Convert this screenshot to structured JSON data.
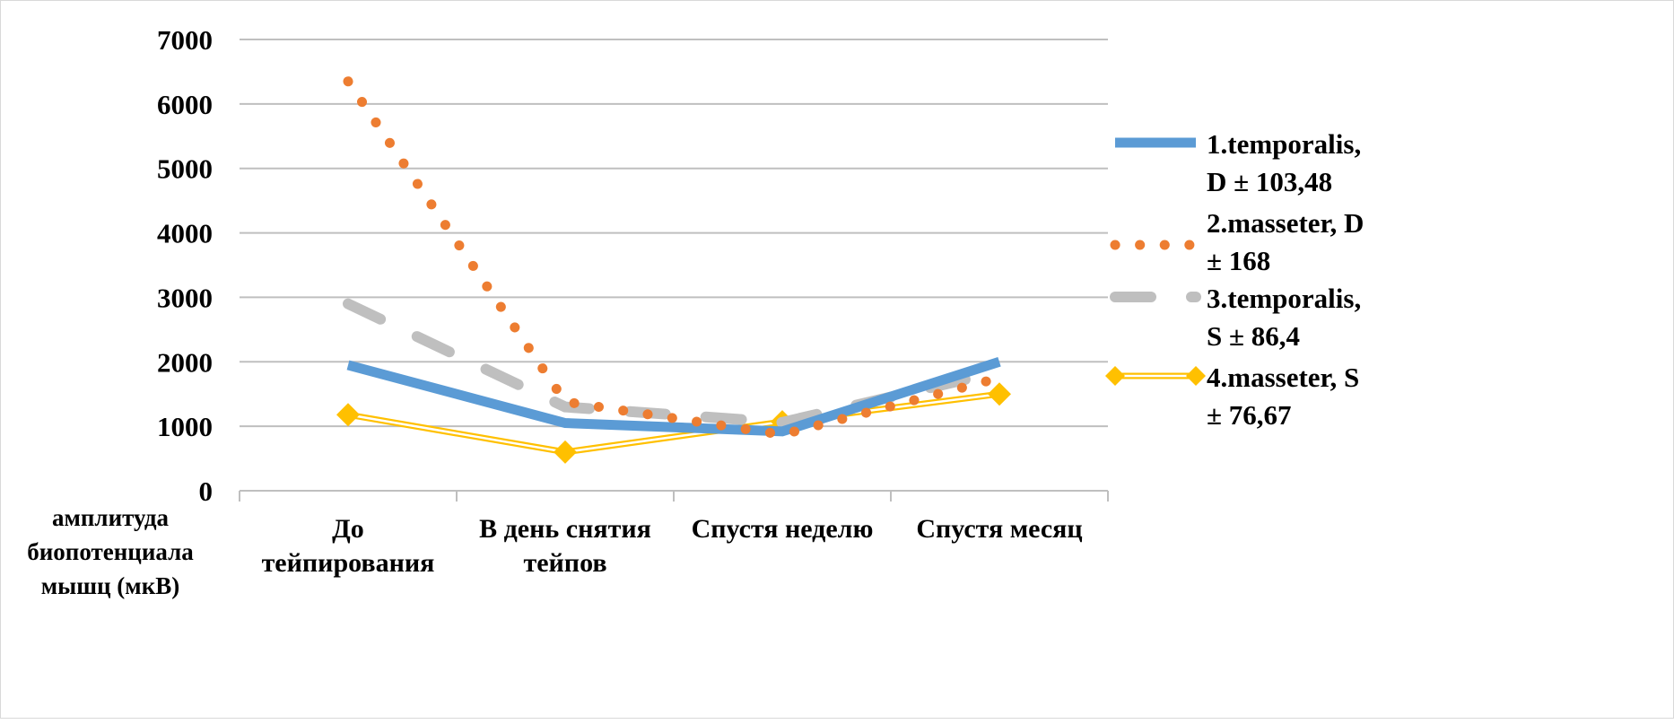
{
  "chart_data": {
    "type": "line",
    "categories": [
      "До тейпирования",
      "В день снятия тейпов",
      "Спустя неделю",
      "Спустя месяц"
    ],
    "ylabel": "амплитуда биопотенциала мышц (мкВ)",
    "ylim": [
      0,
      7000
    ],
    "yticks": [
      0,
      1000,
      2000,
      3000,
      4000,
      5000,
      6000,
      7000
    ],
    "grid": true,
    "legend_position": "right",
    "series": [
      {
        "name": "1.temporalis, D ± 103,48",
        "values": [
          1950,
          1050,
          920,
          2000
        ],
        "color": "#5b9bd5",
        "style": "solid"
      },
      {
        "name": "2.masseter, D ± 168",
        "values": [
          6350,
          1380,
          870,
          1750
        ],
        "color": "#ed7d31",
        "style": "dotted"
      },
      {
        "name": "3.temporalis, S ± 86,4",
        "values": [
          2900,
          1300,
          1060,
          1850
        ],
        "color": "#bfbfbf",
        "style": "dashed"
      },
      {
        "name": "4.masseter, S ± 76,67",
        "values": [
          1180,
          600,
          1070,
          1500
        ],
        "color": "#ffc000",
        "style": "double-diamond"
      }
    ]
  }
}
